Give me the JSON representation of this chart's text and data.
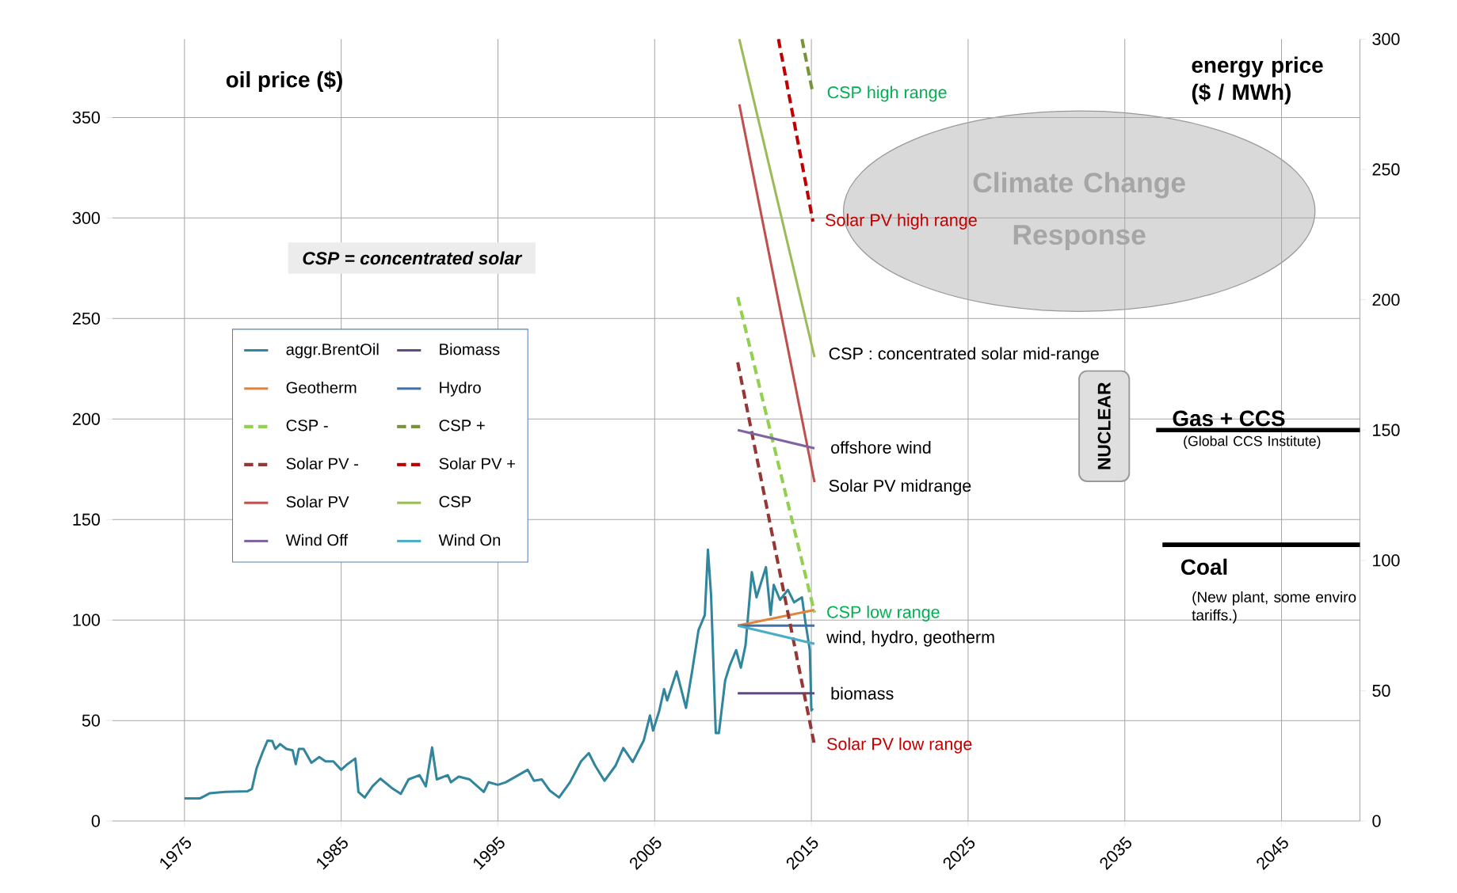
{
  "chart_data": {
    "type": "line",
    "ylabel": "oil price ($)",
    "y2label": "energy price ($ / MWh)",
    "xlim": [
      1970.4,
      2050
    ],
    "xticks": [
      1975,
      1985,
      1995,
      2005,
      2015,
      2025,
      2035,
      2045
    ],
    "ylim": [
      0,
      389
    ],
    "yticks": [
      0,
      50,
      100,
      150,
      200,
      250,
      300,
      350
    ],
    "y2lim": [
      0,
      300
    ],
    "y2ticks": [
      0,
      50,
      100,
      150,
      200,
      250,
      300
    ],
    "grid": true,
    "legend": "left",
    "series": [
      {
        "name": "aggr.BrentOil",
        "color": "#31859c",
        "x": [
          1975.0,
          1976.0,
          1976.6,
          1977.6,
          1979.0,
          1979.3,
          1979.6,
          1980.0,
          1980.3,
          1980.6,
          1980.8,
          1981.1,
          1981.5,
          1981.9,
          1982.1,
          1982.3,
          1982.6,
          1983.1,
          1983.6,
          1984.0,
          1984.5,
          1985.0,
          1985.4,
          1985.9,
          1986.1,
          1986.5,
          1987.0,
          1987.5,
          1988.2,
          1988.8,
          1989.3,
          1990.0,
          1990.4,
          1990.8,
          1991.1,
          1991.8,
          1992.0,
          1992.5,
          1993.2,
          1994.1,
          1994.4,
          1995.0,
          1995.5,
          1996.3,
          1996.9,
          1997.3,
          1997.8,
          1998.3,
          1998.9,
          1999.6,
          2000.3,
          2000.8,
          2001.2,
          2001.8,
          2002.5,
          2003.0,
          2003.6,
          2004.3,
          2004.7,
          2004.9,
          2005.3,
          2005.6,
          2005.8,
          2006.4,
          2007.0,
          2007.4,
          2007.8,
          2008.2,
          2008.4,
          2008.6,
          2008.9,
          2009.1,
          2009.5,
          2009.8,
          2010.2,
          2010.5,
          2010.8,
          2011.2,
          2011.5,
          2012.1,
          2012.4,
          2012.6,
          2013.0,
          2013.5,
          2013.9,
          2014.4,
          2014.6,
          2014.9,
          2015.0,
          2015.1
        ],
        "values": [
          11.3,
          11.3,
          13.8,
          14.5,
          14.8,
          15.9,
          26.2,
          34.5,
          40,
          39.8,
          35.9,
          38.3,
          35.9,
          35.2,
          28.3,
          35.9,
          35.9,
          29,
          31.8,
          29.7,
          29.7,
          25.5,
          28.3,
          31.1,
          14.5,
          11.7,
          17.3,
          21.1,
          16.6,
          13.5,
          20.7,
          22.8,
          17.3,
          36.6,
          20.7,
          22.8,
          19.3,
          22.1,
          20.7,
          14.5,
          19.3,
          18,
          19.3,
          22.8,
          25.5,
          20,
          20.7,
          15.2,
          11.7,
          19.3,
          29.7,
          33.8,
          27.6,
          20,
          27.5,
          36.3,
          29.4,
          40,
          52.5,
          45,
          55,
          65.6,
          60,
          74.4,
          56.3,
          75,
          95,
          102.5,
          135,
          112.5,
          43.8,
          43.8,
          70,
          77.5,
          85,
          76.3,
          87.5,
          123.8,
          111.3,
          126.3,
          102.5,
          117.5,
          110,
          115,
          108.8,
          111.3,
          100,
          85,
          55,
          56
        ]
      },
      {
        "name": "Biomass",
        "color": "#604a7b",
        "axis": "y2",
        "x": [
          2010.3,
          2015.2
        ],
        "values": [
          49,
          49
        ]
      },
      {
        "name": "Geotherm",
        "color": "#e0843a",
        "axis": "y2",
        "x": [
          2010.3,
          2015.2
        ],
        "values": [
          75,
          81
        ]
      },
      {
        "name": "Hydro",
        "color": "#3f72ad",
        "axis": "y2",
        "x": [
          2010.3,
          2015.2
        ],
        "values": [
          75,
          75
        ]
      },
      {
        "name": "CSP -",
        "color": "#92d050",
        "axis": "y2",
        "line_style": "dashed",
        "x": [
          2010.3,
          2015.2
        ],
        "values": [
          201,
          80
        ]
      },
      {
        "name": "CSP +",
        "color": "#77933c",
        "axis": "y2",
        "line_style": "dashed",
        "x": [
          2014.4,
          2015.1
        ],
        "values": [
          300,
          279
        ]
      },
      {
        "name": "Solar PV -",
        "color": "#953735",
        "axis": "y2",
        "line_style": "dashed",
        "x": [
          2010.3,
          2015.2
        ],
        "values": [
          176,
          29
        ]
      },
      {
        "name": "Solar PV +",
        "color": "#c00000",
        "axis": "y2",
        "line_style": "dashed",
        "x": [
          2012.9,
          2015.1
        ],
        "values": [
          300,
          230
        ]
      },
      {
        "name": "Solar PV",
        "color": "#c0504d",
        "axis": "y2",
        "x": [
          2010.4,
          2015.2
        ],
        "values": [
          275,
          130
        ]
      },
      {
        "name": "CSP",
        "color": "#9bbb59",
        "axis": "y2",
        "x": [
          2010.4,
          2015.2
        ],
        "values": [
          300,
          178
        ]
      },
      {
        "name": "Wind Off",
        "color": "#8064a2",
        "axis": "y2",
        "x": [
          2010.3,
          2015.2
        ],
        "values": [
          150,
          143
        ]
      },
      {
        "name": "Wind On",
        "color": "#4bacc6",
        "axis": "y2",
        "x": [
          2010.3,
          2015.2
        ],
        "values": [
          75,
          68
        ]
      },
      {
        "color": "#000000",
        "axis": "y2",
        "x": [
          2037,
          2050
        ],
        "values": [
          150,
          150
        ]
      },
      {
        "color": "#000000",
        "axis": "y2",
        "x": [
          2037.4,
          2050
        ],
        "values": [
          106,
          106
        ]
      }
    ],
    "annotations": [
      "CSP = concentrated solar",
      "Climate Change Response",
      "NUCLEAR",
      "(Global CCS Institute)",
      "(New plant, some enviro tariffs.)",
      "CSP high range",
      "Solar PV high range",
      "CSP : concentrated solar mid-range",
      "offshore wind",
      "Solar PV midrange",
      "CSP low range",
      "wind, hydro, geotherm",
      "biomass",
      "Solar PV low range",
      "Gas + CCS",
      "Coal"
    ]
  }
}
